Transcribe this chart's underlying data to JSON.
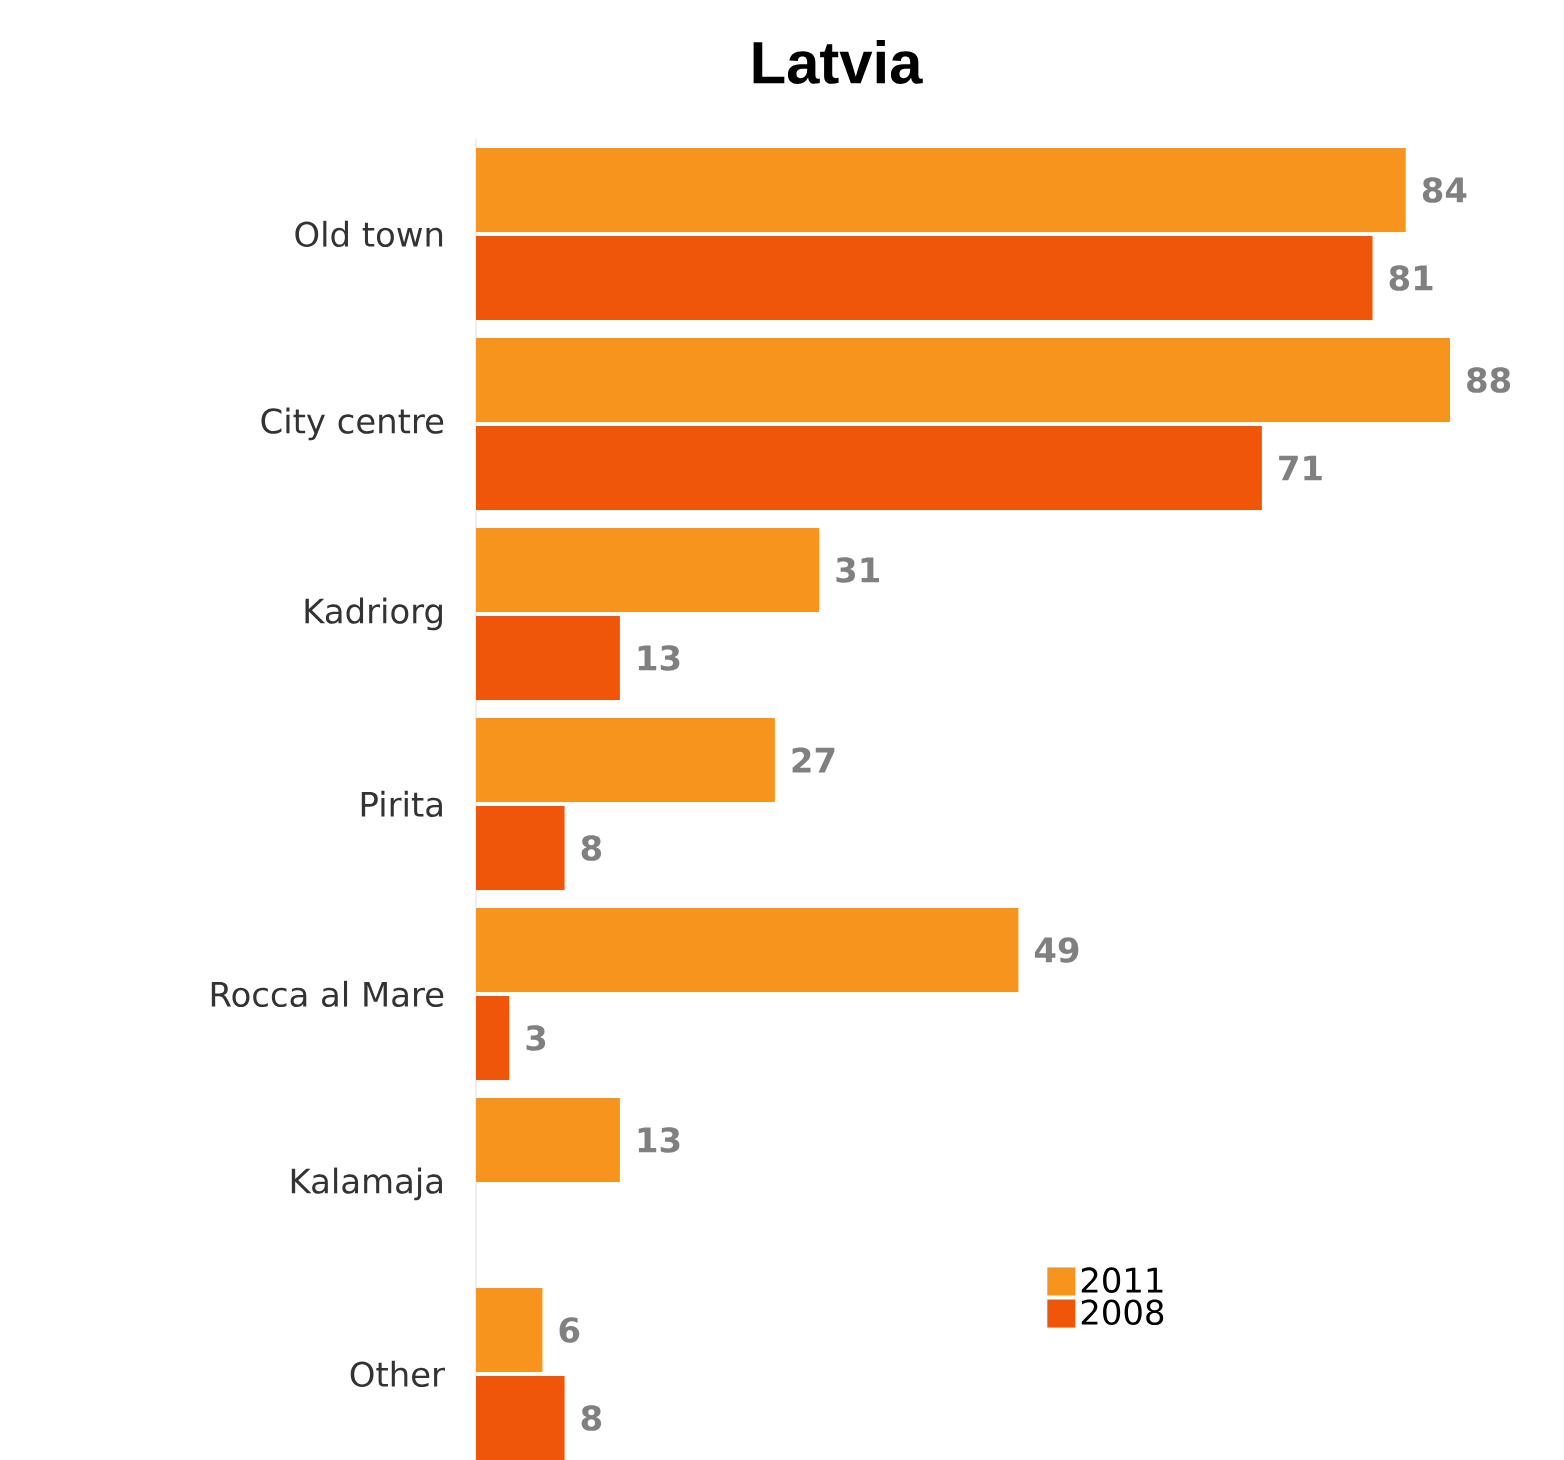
{
  "chart_data": {
    "type": "bar",
    "orientation": "horizontal",
    "title": "Latvia",
    "categories": [
      "Old town",
      "City centre",
      "Kadriorg",
      "Pirita",
      "Rocca al Mare",
      "Kalamaja",
      "Other"
    ],
    "series": [
      {
        "name": "2011",
        "color": "#f7941d",
        "values": [
          84,
          88,
          31,
          27,
          49,
          13,
          6
        ]
      },
      {
        "name": "2008",
        "color": "#f0560a",
        "values": [
          81,
          71,
          13,
          8,
          3,
          null,
          8
        ]
      }
    ],
    "data_labels": true,
    "legend": "bottom right",
    "tick_labels": "y"
  }
}
